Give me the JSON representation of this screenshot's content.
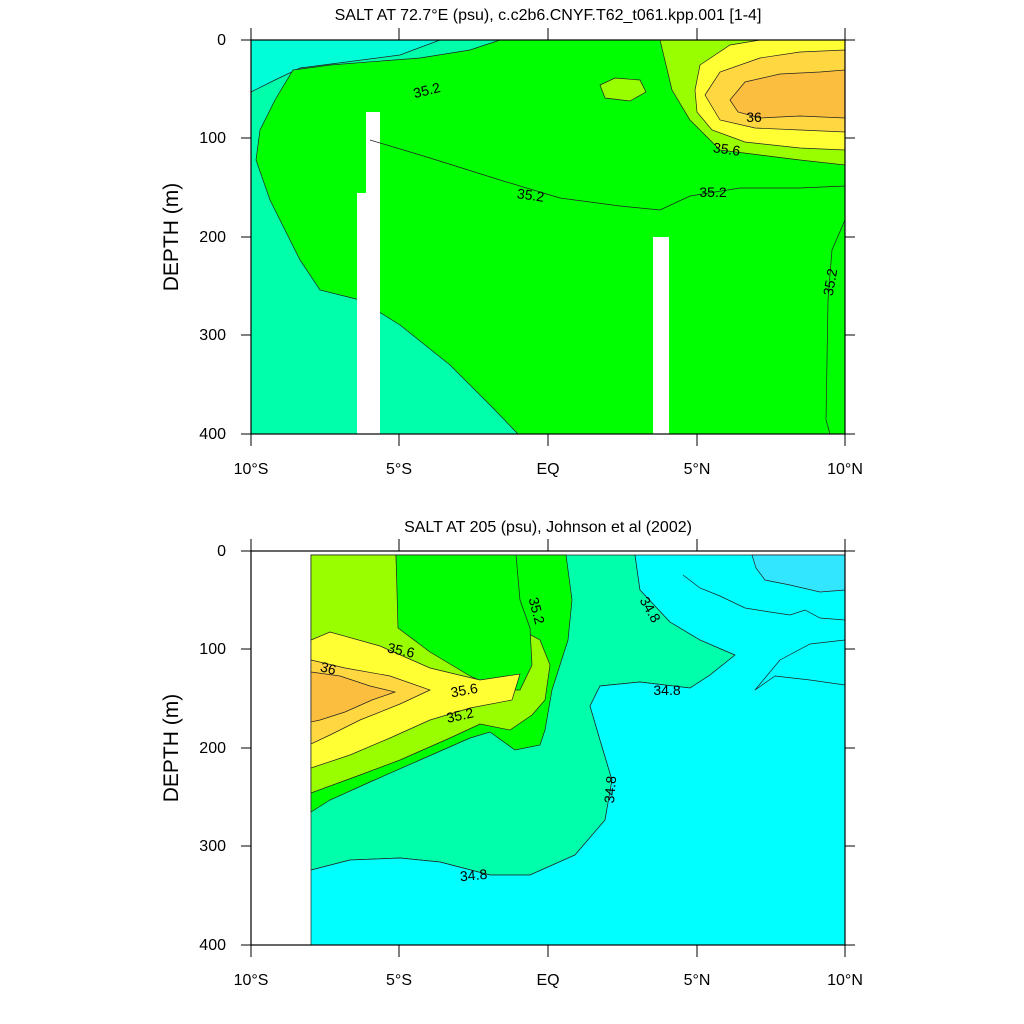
{
  "chart_data": [
    {
      "type": "contour",
      "title": "SALT AT  72.7°E (psu), c.c2b6.CNYF.T62_t061.kpp.001 [1-4]",
      "ylabel": "DEPTH (m)",
      "xlim": [
        -10,
        10
      ],
      "ylim": [
        0,
        400
      ],
      "y_reversed": true,
      "x_ticks": [
        "10°S",
        "5°S",
        "EQ",
        "5°N",
        "10°N"
      ],
      "y_ticks": [
        "0",
        "100",
        "200",
        "300",
        "400"
      ],
      "contour_labels": [
        "35.2",
        "36",
        "35.6",
        "35.2",
        "35.2",
        "35.2"
      ],
      "levels": [
        34.8,
        35.0,
        35.2,
        35.4,
        35.6,
        35.8,
        36.0
      ],
      "colors": {
        "le_34_8": "#00ffd9",
        "s35_0": "#00ffab",
        "s35_2": "#00ff00",
        "s35_4": "#99ff00",
        "s35_6": "#ffff33",
        "s35_8": "#ffd740",
        "s36": "#fcbe3f"
      }
    },
    {
      "type": "contour",
      "title": "SALT AT 205 (psu), Johnson et al (2002)",
      "ylabel": "DEPTH (m)",
      "xlim": [
        -10,
        10
      ],
      "ylim": [
        0,
        400
      ],
      "y_reversed": true,
      "data_x_start": -8,
      "x_ticks": [
        "10°S",
        "5°S",
        "EQ",
        "5°N",
        "10°N"
      ],
      "y_ticks": [
        "0",
        "100",
        "200",
        "300",
        "400"
      ],
      "contour_labels": [
        "35.2",
        "34.8",
        "35.6",
        "36",
        "34.8",
        "35.6",
        "35.2",
        "34.8",
        "34.8"
      ],
      "levels": [
        34.6,
        34.8,
        35.0,
        35.2,
        35.4,
        35.6,
        35.8,
        36.0
      ]
    }
  ]
}
